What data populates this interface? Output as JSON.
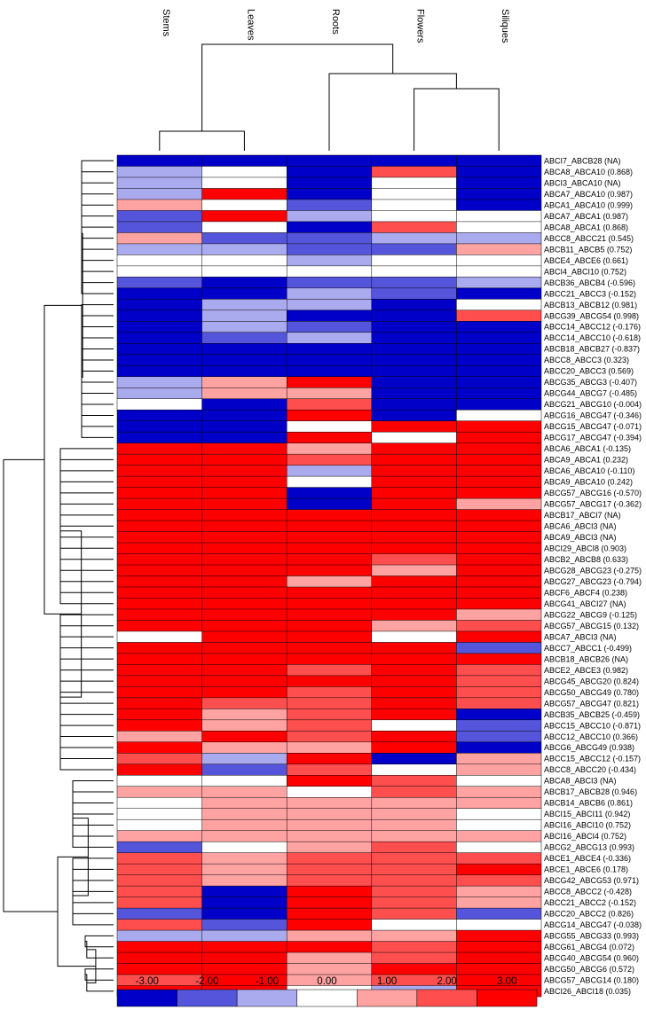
{
  "chart_data": {
    "type": "heatmap",
    "title": "",
    "columns": [
      "Stems",
      "Leaves",
      "Roots",
      "Flowers",
      "Siliques"
    ],
    "rows": [
      "ABCI7_ABCB28 (NA)",
      "ABCA8_ABCA10 (0.868)",
      "ABCI3_ABCA10 (NA)",
      "ABCA7_ABCA10 (0.987)",
      "ABCA1_ABCA10 (0.999)",
      "ABCA7_ABCA1 (0.987)",
      "ABCA8_ABCA1 (0.868)",
      "ABCC8_ABCC21 (0.545)",
      "ABCB11_ABCB5 (0.752)",
      "ABCE4_ABCE6 (0.661)",
      "ABCI4_ABCI10 (0.752)",
      "ABCB36_ABCB4 (-0.596)",
      "ABCC21_ABCC3 (-0.152)",
      "ABCB13_ABCB12 (0.981)",
      "ABCG39_ABCG54 (0.998)",
      "ABCC14_ABCC12 (-0.176)",
      "ABCC14_ABCC10 (-0.618)",
      "ABCB18_ABCB27 (-0.837)",
      "ABCC8_ABCC3 (0.323)",
      "ABCC20_ABCC3 (0.569)",
      "ABCG35_ABCG3 (-0.407)",
      "ABCG44_ABCG7 (-0.485)",
      "ABCG21_ABCG10 (-0.004)",
      "ABCG16_ABCG47 (-0.346)",
      "ABCG15_ABCG47 (-0.071)",
      "ABCG17_ABCG47 (-0.394)",
      "ABCA6_ABCA1 (-0.135)",
      "ABCA9_ABCA1 (0.232)",
      "ABCA6_ABCA10 (-0.110)",
      "ABCA9_ABCA10 (0.242)",
      "ABCG57_ABCG16 (-0.570)",
      "ABCG57_ABCG17 (-0.362)",
      "ABCB17_ABCI7 (NA)",
      "ABCA6_ABCI3 (NA)",
      "ABCA9_ABCI3 (NA)",
      "ABCI29_ABCI8 (0.903)",
      "ABCB2_ABCB8 (0.633)",
      "ABCG28_ABCG23 (-0.275)",
      "ABCG27_ABCG23 (-0.794)",
      "ABCF6_ABCF4 (0.238)",
      "ABCG41_ABCI27 (NA)",
      "ABCG22_ABCG9 (-0.125)",
      "ABCG57_ABCG15 (0.132)",
      "ABCA7_ABCI3 (NA)",
      "ABCC7_ABCC1 (-0.499)",
      "ABCB18_ABCB26 (NA)",
      "ABCE2_ABCE3 (0.982)",
      "ABCG45_ABCG20 (0.824)",
      "ABCG50_ABCG49 (0.780)",
      "ABCG57_ABCG47 (0.821)",
      "ABCB35_ABCB25 (-0.459)",
      "ABCC15_ABCC10 (-0.871)",
      "ABCC12_ABCC10 (0.366)",
      "ABCG6_ABCG49 (0.938)",
      "ABCC15_ABCC12 (-0.157)",
      "ABCC8_ABCC20 (-0.434)",
      "ABCA8_ABCI3 (NA)",
      "ABCB17_ABCB28 (0.946)",
      "ABCB14_ABCB6 (0.861)",
      "ABCI15_ABCI11 (0.942)",
      "ABCI16_ABCI10 (0.752)",
      "ABCI16_ABCI4 (0.752)",
      "ABCG2_ABCG13 (0.993)",
      "ABCE1_ABCE4 (-0.336)",
      "ABCE1_ABCE6 (0.178)",
      "ABCG42_ABCG53 (0.971)",
      "ABCC8_ABCC2 (-0.428)",
      "ABCC21_ABCC2 (-0.152)",
      "ABCC20_ABCC2 (0.826)",
      "ABCG14_ABCG47 (-0.038)",
      "ABCG55_ABCG33 (0.993)",
      "ABCG61_ABCG4 (0.072)",
      "ABCG40_ABCG54 (0.960)",
      "ABCG50_ABCG6 (0.572)",
      "ABCG57_ABCG14 (0.180)",
      "ABCI26_ABCI18 (0.035)"
    ],
    "values": [
      [
        -3,
        -3,
        -3,
        -3,
        -3
      ],
      [
        -1,
        0,
        -3,
        2,
        -3
      ],
      [
        -1,
        0,
        -3,
        0,
        -3
      ],
      [
        -1,
        3,
        -3,
        0,
        -3
      ],
      [
        1,
        0,
        -2,
        0,
        -3
      ],
      [
        -2,
        3,
        -1,
        0,
        0
      ],
      [
        -2,
        0,
        -3,
        2,
        0
      ],
      [
        1,
        -2,
        -2,
        -1,
        -1
      ],
      [
        -1,
        -1,
        -2,
        -2,
        1
      ],
      [
        0,
        0,
        -1,
        0,
        0
      ],
      [
        0,
        0,
        0,
        0,
        0
      ],
      [
        -2,
        -3,
        -2,
        -2,
        -1
      ],
      [
        -3,
        -3,
        -1,
        -2,
        -3
      ],
      [
        -3,
        -1,
        -1,
        -3,
        0
      ],
      [
        -3,
        -1,
        -3,
        -3,
        2
      ],
      [
        -3,
        -1,
        -2,
        -3,
        -3
      ],
      [
        -3,
        -2,
        -1,
        -3,
        -3
      ],
      [
        -3,
        -3,
        -3,
        -3,
        -3
      ],
      [
        -3,
        -3,
        -3,
        -3,
        -3
      ],
      [
        -3,
        -3,
        -3,
        -3,
        -3
      ],
      [
        -1,
        1,
        3,
        -3,
        -3
      ],
      [
        -1,
        1,
        1,
        -3,
        -3
      ],
      [
        0,
        -3,
        2,
        -3,
        -3
      ],
      [
        -3,
        -3,
        3,
        -3,
        0
      ],
      [
        -3,
        -3,
        0,
        3,
        3
      ],
      [
        -3,
        -3,
        3,
        0,
        3
      ],
      [
        3,
        3,
        1,
        3,
        3
      ],
      [
        3,
        3,
        2,
        3,
        3
      ],
      [
        3,
        3,
        -1,
        3,
        3
      ],
      [
        3,
        3,
        0,
        3,
        3
      ],
      [
        3,
        3,
        -3,
        3,
        3
      ],
      [
        3,
        3,
        -3,
        3,
        1
      ],
      [
        3,
        3,
        3,
        3,
        3
      ],
      [
        3,
        3,
        3,
        3,
        3
      ],
      [
        3,
        3,
        3,
        3,
        3
      ],
      [
        3,
        3,
        3,
        3,
        3
      ],
      [
        3,
        3,
        3,
        2,
        3
      ],
      [
        3,
        3,
        3,
        1,
        3
      ],
      [
        3,
        3,
        1,
        3,
        3
      ],
      [
        3,
        3,
        3,
        3,
        3
      ],
      [
        3,
        3,
        3,
        3,
        3
      ],
      [
        3,
        3,
        3,
        3,
        1
      ],
      [
        3,
        3,
        3,
        1,
        2
      ],
      [
        0,
        3,
        3,
        0,
        3
      ],
      [
        3,
        3,
        3,
        3,
        -2
      ],
      [
        3,
        3,
        3,
        3,
        3
      ],
      [
        3,
        3,
        2,
        3,
        2
      ],
      [
        3,
        3,
        3,
        3,
        2
      ],
      [
        3,
        3,
        2,
        3,
        2
      ],
      [
        3,
        2,
        2,
        3,
        2
      ],
      [
        3,
        1,
        2,
        3,
        -3
      ],
      [
        3,
        1,
        2,
        0,
        -2
      ],
      [
        1,
        3,
        2,
        3,
        -2
      ],
      [
        3,
        1,
        1,
        3,
        -3
      ],
      [
        2,
        -1,
        3,
        -3,
        1
      ],
      [
        3,
        -2,
        2,
        0,
        1
      ],
      [
        0,
        0,
        3,
        2,
        0
      ],
      [
        1,
        1,
        0,
        2,
        1
      ],
      [
        0,
        1,
        1,
        1,
        1
      ],
      [
        0,
        1,
        1,
        1,
        0
      ],
      [
        0,
        1,
        1,
        1,
        0
      ],
      [
        1,
        1,
        1,
        1,
        1
      ],
      [
        -2,
        0,
        1,
        2,
        0
      ],
      [
        2,
        1,
        2,
        2,
        2
      ],
      [
        2,
        1,
        2,
        2,
        3
      ],
      [
        2,
        1,
        2,
        2,
        2
      ],
      [
        2,
        -3,
        3,
        2,
        1
      ],
      [
        2,
        -3,
        3,
        2,
        1
      ],
      [
        -2,
        -3,
        3,
        2,
        -2
      ],
      [
        2,
        -2,
        3,
        0,
        0
      ],
      [
        -1,
        -1,
        1,
        1,
        3
      ],
      [
        3,
        3,
        3,
        2,
        3
      ],
      [
        3,
        3,
        1,
        2,
        3
      ],
      [
        3,
        3,
        1,
        3,
        3
      ],
      [
        2,
        3,
        1,
        2,
        3
      ],
      [
        3,
        3,
        0,
        -1,
        3
      ]
    ],
    "scale": {
      "ticks": [
        "-3.00",
        "-2.00",
        "-1.00",
        "0.00",
        "1.00",
        "2.00",
        "3.00"
      ],
      "colors": [
        "#0000c8",
        "#5555dc",
        "#aaaaee",
        "#ffffff",
        "#ffa2a2",
        "#ff4e4e",
        "#ff0000"
      ],
      "range": [
        -3,
        3
      ]
    },
    "column_dendrogram": "((Stems,Leaves),(Roots,(Flowers,Siliques)))",
    "row_dendrogram": true
  }
}
